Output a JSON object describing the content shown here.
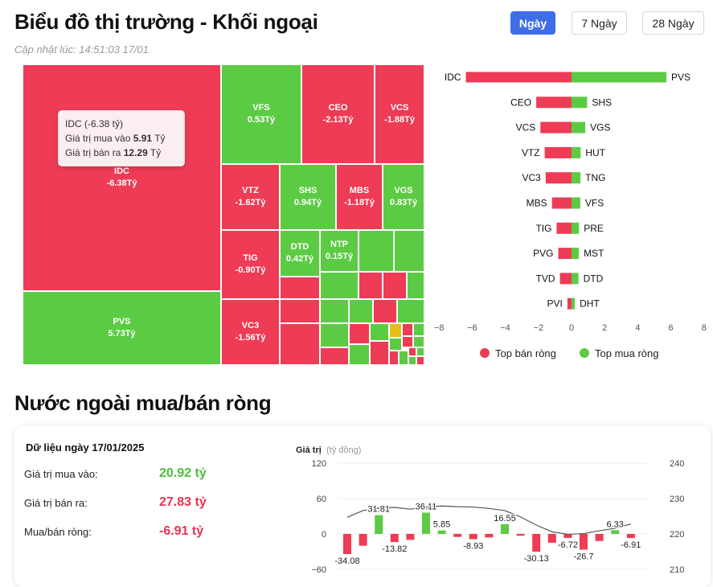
{
  "header": {
    "title": "Biểu đồ thị trường - Khối ngoại",
    "updated": "Cập nhật lúc: 14:51:03 17/01",
    "ranges": [
      "Ngày",
      "7 Ngày",
      "28 Ngày"
    ],
    "active_range": "Ngày"
  },
  "colors": {
    "sell": "#ee3b56",
    "buy": "#5ccb44",
    "accent": "#3f6de8",
    "highlight": "#e5c118"
  },
  "chart_data": [
    {
      "type": "heatmap",
      "title": "",
      "tiles": [
        {
          "ticker": "IDC",
          "value": -6.38,
          "label": "-6.38Tỷ"
        },
        {
          "ticker": "PVS",
          "value": 5.73,
          "label": "5.73Tỷ"
        },
        {
          "ticker": "VFS",
          "value": 0.53,
          "label": "0.53Tỷ"
        },
        {
          "ticker": "CEO",
          "value": -2.13,
          "label": "-2.13Tỷ"
        },
        {
          "ticker": "VCS",
          "value": -1.88,
          "label": "-1.88Tỷ"
        },
        {
          "ticker": "VTZ",
          "value": -1.62,
          "label": "-1.62Tỷ"
        },
        {
          "ticker": "SHS",
          "value": 0.94,
          "label": "0.94Tỷ"
        },
        {
          "ticker": "MBS",
          "value": -1.18,
          "label": "-1.18Tỷ"
        },
        {
          "ticker": "VGS",
          "value": 0.83,
          "label": "0.83Tỷ"
        },
        {
          "ticker": "TIG",
          "value": -0.9,
          "label": "-0.90Tỷ"
        },
        {
          "ticker": "DTD",
          "value": 0.42,
          "label": "0.42Tỷ"
        },
        {
          "ticker": "NTP",
          "value": 0.15,
          "label": "0.15Tỷ"
        },
        {
          "ticker": "VC3",
          "value": -1.56,
          "label": "-1.56Tỷ"
        }
      ],
      "tooltip": {
        "title": "IDC (-6.38 tỷ)",
        "buy_label": "Giá trị mua vào",
        "buy_value": "5.91",
        "buy_unit": "Tỷ",
        "sell_label": "Giá trị bán ra",
        "sell_value": "12.29",
        "sell_unit": "Tỷ"
      }
    },
    {
      "type": "bar",
      "title": "",
      "orientation": "horizontal-diverging",
      "sell_series": {
        "name": "Top bán ròng",
        "categories": [
          "IDC",
          "CEO",
          "VCS",
          "VTZ",
          "VC3",
          "MBS",
          "TIG",
          "PVG",
          "TVD",
          "PVI"
        ],
        "values": [
          -6.38,
          -2.13,
          -1.88,
          -1.62,
          -1.56,
          -1.18,
          -0.9,
          -0.8,
          -0.7,
          -0.25
        ]
      },
      "buy_series": {
        "name": "Top mua ròng",
        "categories": [
          "PVS",
          "SHS",
          "VGS",
          "HUT",
          "TNG",
          "VFS",
          "PRE",
          "MST",
          "DTD",
          "DHT"
        ],
        "values": [
          5.73,
          0.94,
          0.83,
          0.55,
          0.54,
          0.53,
          0.45,
          0.44,
          0.42,
          0.2
        ]
      },
      "xlim": [
        -8,
        8
      ],
      "xticks": [
        "−8",
        "−6",
        "−4",
        "−2",
        "0",
        "2",
        "4",
        "6",
        "8"
      ],
      "legend_position": "bottom"
    },
    {
      "type": "bar",
      "title": "",
      "ylabel": "Giá trị",
      "ylabel_unit": "(tỷ đồng)",
      "y_left_ticks": [
        "120",
        "60",
        "0",
        "−60"
      ],
      "y_right_ticks": [
        "240",
        "230",
        "220",
        "210"
      ],
      "ylim": [
        -60,
        120
      ],
      "y2lim": [
        210,
        240
      ],
      "net_values": [
        -34.08,
        -20,
        31.81,
        -13.82,
        -10,
        36.11,
        5.85,
        -5,
        -8.93,
        -6,
        16.55,
        -3,
        -30.13,
        -15,
        -6.72,
        -26.7,
        -12,
        6.33,
        -6.91
      ],
      "value_labels": [
        {
          "index": 0,
          "text": "-34.08"
        },
        {
          "index": 2,
          "text": "31.81"
        },
        {
          "index": 3,
          "text": "-13.82"
        },
        {
          "index": 5,
          "text": "36.11"
        },
        {
          "index": 6,
          "text": "5.85"
        },
        {
          "index": 8,
          "text": "-8.93"
        },
        {
          "index": 10,
          "text": "16.55"
        },
        {
          "index": 12,
          "text": "-30.13"
        },
        {
          "index": 14,
          "text": "-6.72"
        },
        {
          "index": 15,
          "text": "-26.7"
        },
        {
          "index": 17,
          "text": "6.33"
        },
        {
          "index": 18,
          "text": "-6.91"
        }
      ],
      "index_line": [
        224.7,
        226.6,
        227.3,
        227.5,
        227.0,
        227.6,
        227.9,
        227.7,
        227.6,
        227.2,
        226.6,
        224.8,
        222.5,
        220.6,
        219.9,
        220.1,
        220.9,
        221.6,
        222.8
      ]
    }
  ],
  "summary": {
    "date_label": "Dữ liệu ngày 17/01/2025",
    "buy_label": "Giá trị mua vào:",
    "buy_value": "20.92 tỷ",
    "sell_label": "Giá trị bán ra:",
    "sell_value": "27.83 tỷ",
    "net_label": "Mua/bán ròng:",
    "net_value": "-6.91 tỷ"
  },
  "section_title": "Nước ngoài mua/bán ròng"
}
